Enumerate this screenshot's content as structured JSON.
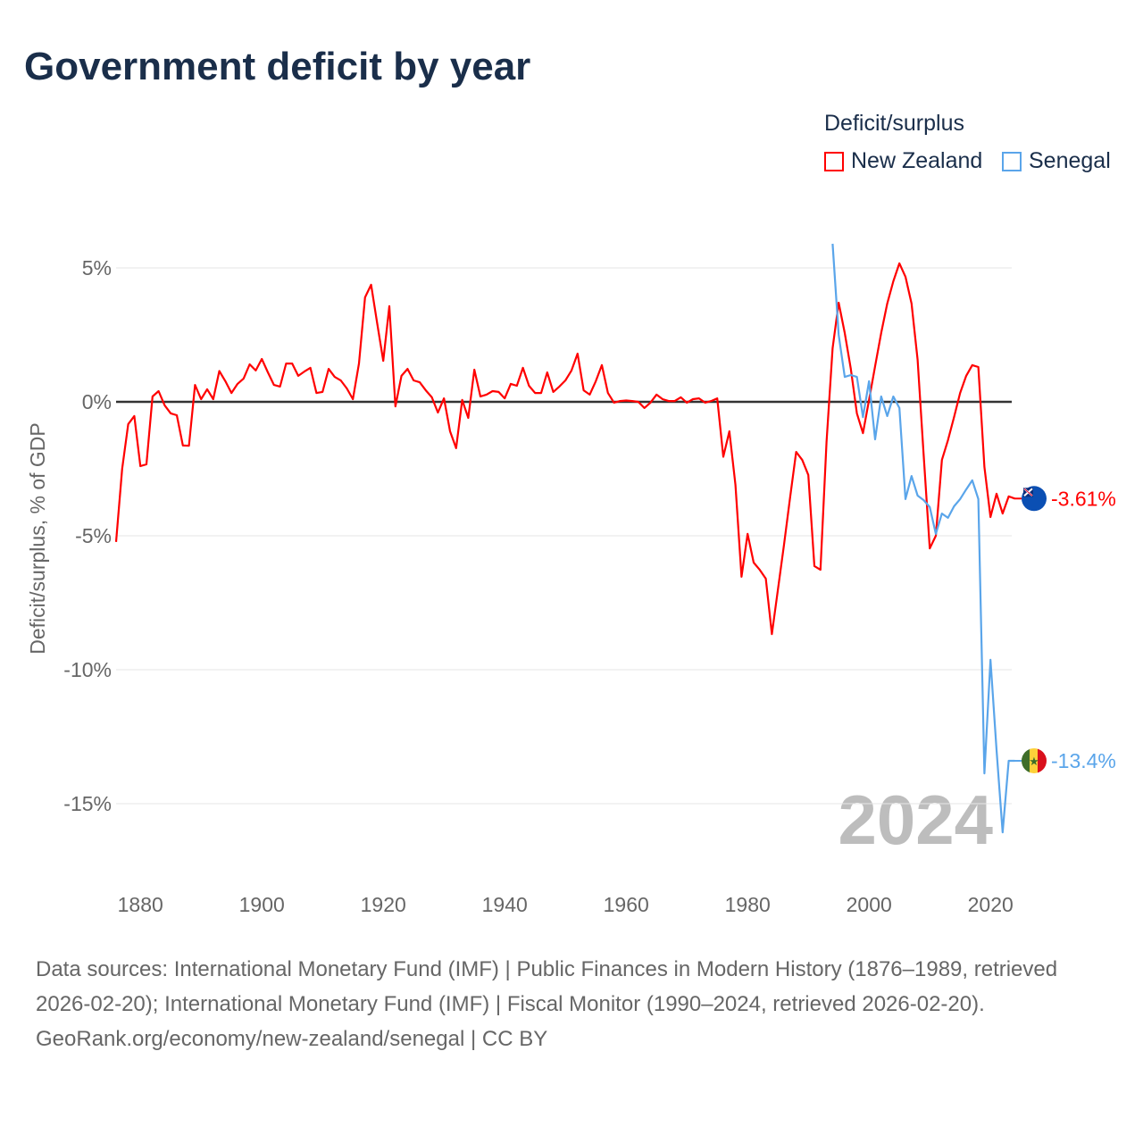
{
  "title": "Government deficit by year",
  "legend": {
    "title": "Deficit/surplus",
    "items": [
      {
        "label": "New Zealand",
        "color": "#ff0000"
      },
      {
        "label": "Senegal",
        "color": "#5aa5ea"
      }
    ]
  },
  "footer": {
    "sources": "Data sources: International Monetary Fund (IMF) | Public Finances in Modern History (1876–1989, retrieved 2026-02-20); International Monetary Fund (IMF) | Fiscal Monitor (1990–2024, retrieved 2026-02-20).",
    "credit": "GeoRank.org/economy/new-zealand/senegal | CC BY"
  },
  "chart_data": {
    "type": "line",
    "title": "Government deficit by year",
    "xlabel": "",
    "ylabel": "Deficit/surplus, % of GDP",
    "xlim": [
      1876,
      2024
    ],
    "ylim": [
      -16.5,
      6
    ],
    "xticks": [
      1880,
      1900,
      1920,
      1940,
      1960,
      1980,
      2000,
      2020
    ],
    "xtick_labels": [
      "1880",
      "1900",
      "1920",
      "1940",
      "1960",
      "1980",
      "2000",
      "2020"
    ],
    "yticks": [
      5,
      0,
      -5,
      -10,
      -15
    ],
    "ytick_labels": [
      "5%",
      "0%",
      "-5%",
      "-10%",
      "-15%"
    ],
    "year_watermark": "2024",
    "legend_placement": "top-right",
    "series": [
      {
        "name": "New Zealand",
        "color": "#ff0000",
        "start_year": 1876,
        "end_label": "-3.61%",
        "values": [
          -5.23,
          -2.5,
          -0.83,
          -0.53,
          -2.4,
          -2.33,
          0.2,
          0.4,
          -0.13,
          -0.43,
          -0.5,
          -1.63,
          -1.64,
          0.63,
          0.1,
          0.47,
          0.1,
          1.15,
          0.77,
          0.33,
          0.67,
          0.87,
          1.4,
          1.17,
          1.6,
          1.1,
          0.63,
          0.57,
          1.43,
          1.43,
          0.97,
          1.13,
          1.27,
          0.33,
          0.37,
          1.23,
          0.93,
          0.8,
          0.5,
          0.1,
          1.43,
          3.9,
          4.37,
          2.93,
          1.53,
          3.57,
          -0.17,
          0.97,
          1.23,
          0.8,
          0.73,
          0.43,
          0.17,
          -0.4,
          0.13,
          -1.1,
          -1.73,
          0.07,
          -0.6,
          1.2,
          0.2,
          0.27,
          0.4,
          0.37,
          0.13,
          0.67,
          0.6,
          1.27,
          0.6,
          0.33,
          0.33,
          1.1,
          0.37,
          0.57,
          0.8,
          1.17,
          1.8,
          0.43,
          0.27,
          0.77,
          1.37,
          0.33,
          -0.03,
          0.03,
          0.05,
          0.03,
          0.0,
          -0.23,
          -0.03,
          0.27,
          0.1,
          0.03,
          0.03,
          0.17,
          -0.03,
          0.1,
          0.13,
          -0.03,
          0.03,
          0.13,
          -2.05,
          -1.1,
          -3.1,
          -6.53,
          -4.93,
          -6.0,
          -6.27,
          -6.6,
          -8.67,
          -7.0,
          -5.33,
          -3.57,
          -1.87,
          -2.17,
          -2.73,
          -6.13,
          -6.27,
          -1.5,
          2.0,
          3.7,
          2.57,
          1.23,
          -0.43,
          -1.17,
          0.07,
          1.33,
          2.57,
          3.67,
          4.5,
          5.17,
          4.67,
          3.67,
          1.57,
          -2.0,
          -5.47,
          -5.0,
          -2.17,
          -1.43,
          -0.57,
          0.33,
          0.97,
          1.37,
          1.3,
          -2.43,
          -4.3,
          -3.43,
          -4.17,
          -3.53,
          -3.61
        ]
      },
      {
        "name": "Senegal",
        "color": "#5aa5ea",
        "start_year": 1994,
        "end_label": "-13.4%",
        "values": [
          5.9,
          2.5,
          0.93,
          1.0,
          0.93,
          -0.57,
          0.77,
          -1.4,
          0.2,
          -0.53,
          0.2,
          -0.23,
          -3.63,
          -2.77,
          -3.5,
          -3.67,
          -3.93,
          -4.93,
          -4.17,
          -4.33,
          -3.9,
          -3.63,
          -3.27,
          -2.93,
          -3.63,
          -13.87,
          -9.63,
          -13.0,
          -16.07,
          -13.4,
          -13.4
        ]
      }
    ]
  }
}
